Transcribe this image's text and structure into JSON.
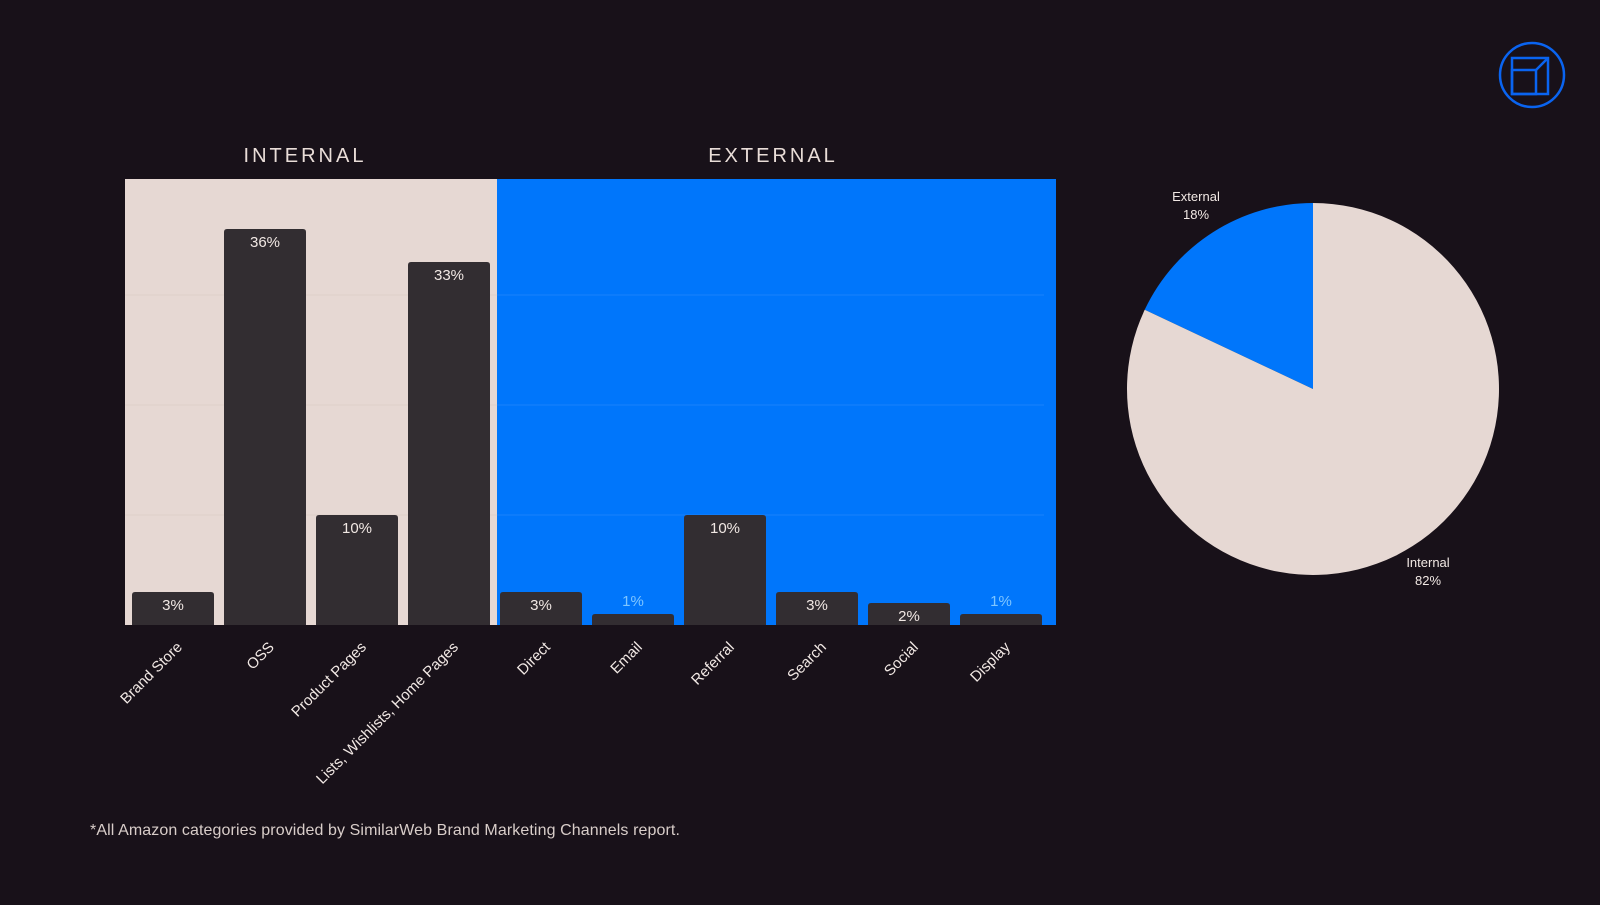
{
  "chart_data": [
    {
      "type": "bar",
      "groups": [
        {
          "name": "INTERNAL",
          "categories": [
            "Brand Store",
            "OSS",
            "Product Pages",
            "Lists, Wishlists, Home Pages"
          ]
        },
        {
          "name": "EXTERNAL",
          "categories": [
            "Direct",
            "Email",
            "Referral",
            "Search",
            "Social",
            "Display"
          ]
        }
      ],
      "categories": [
        "Brand Store",
        "OSS",
        "Product Pages",
        "Lists, Wishlists, Home Pages",
        "Direct",
        "Email",
        "Referral",
        "Search",
        "Social",
        "Display"
      ],
      "values": [
        3,
        36,
        10,
        33,
        3,
        1,
        10,
        3,
        2,
        1
      ],
      "value_labels": [
        "3%",
        "36%",
        "10%",
        "33%",
        "3%",
        "1%",
        "10%",
        "3%",
        "2%",
        "1%"
      ],
      "ylim": [
        0,
        40
      ],
      "grid": true,
      "colors": {
        "internal_bg": "#e6d8d3",
        "external_bg": "#0076fb",
        "bar": "#322d31"
      }
    },
    {
      "type": "pie",
      "slices": [
        {
          "label": "External",
          "value": 18,
          "value_label": "18%",
          "color": "#0076fb"
        },
        {
          "label": "Internal",
          "value": 82,
          "value_label": "82%",
          "color": "#e6d8d3"
        }
      ]
    }
  ],
  "footnote": "*All Amazon categories provided by SimilarWeb Brand Marketing Channels report.",
  "logo": {
    "icon": "cube-outline-icon",
    "color": "#0a64f0"
  },
  "colors": {
    "background": "#181119",
    "accent": "#0076fb"
  }
}
